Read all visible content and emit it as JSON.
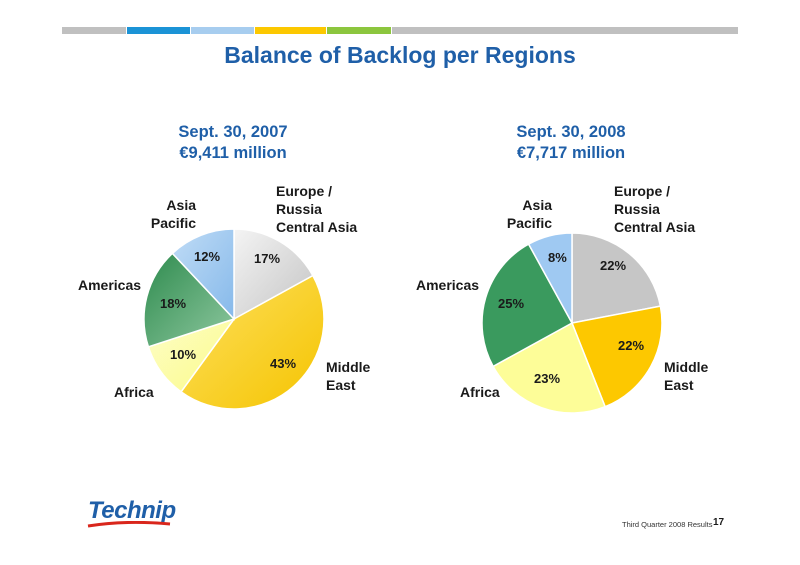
{
  "title": "Balance of Backlog per Regions",
  "colors": {
    "europe": "#d2d2d2",
    "middle_east": "#fcc800",
    "africa": "#fdfda0",
    "americas": "#3a9a5e",
    "asia": "#9fc9f2",
    "accent_blue": "#1f5fa8"
  },
  "chart_data": [
    {
      "type": "pie",
      "title": "Sept. 30, 2007",
      "subtitle": "€9,411 million",
      "labels": [
        "Europe / Russia Central Asia",
        "Middle East",
        "Africa",
        "Americas",
        "Asia Pacific"
      ],
      "values": [
        17,
        43,
        10,
        18,
        12
      ],
      "value_labels": [
        "17%",
        "43%",
        "10%",
        "18%",
        "12%"
      ]
    },
    {
      "type": "pie",
      "title": "Sept. 30, 2008",
      "subtitle": "€7,717 million",
      "labels": [
        "Europe / Russia Central Asia",
        "Middle East",
        "Africa",
        "Americas",
        "Asia Pacific"
      ],
      "values": [
        22,
        22,
        23,
        25,
        8
      ],
      "value_labels": [
        "22%",
        "22%",
        "23%",
        "25%",
        "8%"
      ]
    }
  ],
  "region_labels": {
    "europe": [
      "Europe /",
      "Russia",
      "Central Asia"
    ],
    "middle_east": [
      "Middle",
      "East"
    ],
    "africa": "Africa",
    "americas": "Americas",
    "asia": [
      "Asia",
      "Pacific"
    ]
  },
  "footer": {
    "logo_text": "Technip",
    "caption": "Third Quarter 2008 Results",
    "page_number": "17"
  }
}
